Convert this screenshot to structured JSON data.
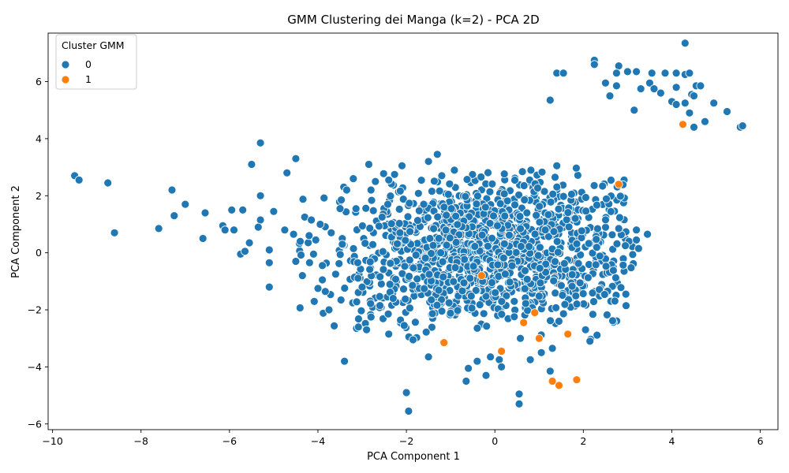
{
  "chart_data": {
    "type": "scatter",
    "title": "GMM Clustering dei Manga (k=2) - PCA 2D",
    "xlabel": "PCA Component 1",
    "ylabel": "PCA Component 2",
    "xlim": [
      -10.1,
      6.4
    ],
    "ylim": [
      -6.2,
      7.7
    ],
    "xticks": [
      "−10",
      "−8",
      "−6",
      "−4",
      "−2",
      "0",
      "2",
      "4",
      "6"
    ],
    "xtick_values": [
      -10,
      -8,
      -6,
      -4,
      -2,
      0,
      2,
      4,
      6
    ],
    "yticks": [
      "−6",
      "−4",
      "−2",
      "0",
      "2",
      "4",
      "6"
    ],
    "ytick_values": [
      -6,
      -4,
      -2,
      0,
      2,
      4,
      6
    ],
    "grid": false,
    "legend": {
      "title": "Cluster GMM",
      "placement": "top-left"
    },
    "series": [
      {
        "name": "0",
        "color": "#1f77b4",
        "points": [
          [
            -9.5,
            2.7
          ],
          [
            -9.4,
            2.55
          ],
          [
            -8.75,
            2.45
          ],
          [
            -8.6,
            0.7
          ],
          [
            -7.6,
            0.85
          ],
          [
            -7.3,
            2.2
          ],
          [
            -7.25,
            1.3
          ],
          [
            -7.0,
            1.7
          ],
          [
            -6.55,
            1.4
          ],
          [
            -6.6,
            0.5
          ],
          [
            -6.15,
            0.95
          ],
          [
            -6.1,
            0.8
          ],
          [
            -5.95,
            1.5
          ],
          [
            -5.9,
            0.8
          ],
          [
            -5.7,
            1.5
          ],
          [
            -5.75,
            -0.05
          ],
          [
            -5.65,
            0.05
          ],
          [
            -5.55,
            0.35
          ],
          [
            -5.5,
            3.1
          ],
          [
            -5.3,
            3.85
          ],
          [
            -5.3,
            2.0
          ],
          [
            -5.3,
            1.15
          ],
          [
            -5.35,
            0.9
          ],
          [
            -5.1,
            0.1
          ],
          [
            -5.1,
            -0.35
          ],
          [
            -5.1,
            -1.2
          ],
          [
            -5.0,
            1.45
          ],
          [
            -4.75,
            0.8
          ],
          [
            -4.7,
            2.8
          ],
          [
            -4.5,
            3.3
          ],
          [
            -4.55,
            0.65
          ],
          [
            -4.5,
            -0.3
          ],
          [
            -4.4,
            0.4
          ],
          [
            -4.35,
            -0.8
          ],
          [
            -4.3,
            1.25
          ],
          [
            -4.2,
            0.6
          ],
          [
            -4.15,
            1.15
          ],
          [
            -4.1,
            -0.05
          ],
          [
            -4.05,
            0.45
          ],
          [
            -4.0,
            -1.25
          ],
          [
            -3.95,
            1.0
          ],
          [
            -3.9,
            -0.45
          ],
          [
            -3.9,
            -0.95
          ],
          [
            -3.75,
            -2.0
          ],
          [
            -3.7,
            0.7
          ],
          [
            -3.6,
            -0.75
          ],
          [
            -3.5,
            1.55
          ],
          [
            -3.45,
            0.3
          ],
          [
            -3.4,
            -3.8
          ],
          [
            -3.35,
            2.2
          ],
          [
            -3.2,
            2.6
          ],
          [
            -3.1,
            -0.35
          ],
          [
            -3.0,
            -1.2
          ],
          [
            -2.9,
            -2.7
          ],
          [
            -2.85,
            3.1
          ],
          [
            -2.8,
            2.2
          ],
          [
            -2.8,
            -2.25
          ],
          [
            -2.7,
            2.5
          ],
          [
            -2.6,
            -1.85
          ],
          [
            -2.55,
            1.25
          ],
          [
            -2.4,
            2.55
          ],
          [
            -2.4,
            -2.85
          ],
          [
            -2.3,
            -1.6
          ],
          [
            -2.1,
            3.05
          ],
          [
            -2.05,
            -2.55
          ],
          [
            -2.0,
            -4.9
          ],
          [
            -1.95,
            -5.55
          ],
          [
            -1.85,
            -3.05
          ],
          [
            -1.5,
            3.2
          ],
          [
            -1.5,
            -3.65
          ],
          [
            -1.3,
            3.45
          ],
          [
            -1.2,
            2.7
          ],
          [
            -0.65,
            -4.5
          ],
          [
            -0.6,
            -4.05
          ],
          [
            -0.4,
            -3.8
          ],
          [
            -0.2,
            -4.3
          ],
          [
            -0.1,
            -3.65
          ],
          [
            0.1,
            -3.75
          ],
          [
            0.15,
            -4.0
          ],
          [
            0.55,
            -4.95
          ],
          [
            0.55,
            -5.3
          ],
          [
            0.8,
            -3.75
          ],
          [
            1.05,
            -3.5
          ],
          [
            1.3,
            -3.35
          ],
          [
            1.25,
            -4.15
          ],
          [
            1.4,
            3.05
          ],
          [
            1.4,
            6.3
          ],
          [
            1.55,
            6.3
          ],
          [
            1.25,
            5.35
          ],
          [
            2.05,
            -2.7
          ],
          [
            2.15,
            -3.1
          ],
          [
            2.25,
            6.75
          ],
          [
            2.25,
            6.6
          ],
          [
            2.5,
            5.95
          ],
          [
            2.6,
            5.5
          ],
          [
            2.8,
            6.55
          ],
          [
            2.75,
            5.85
          ],
          [
            2.75,
            6.3
          ],
          [
            3.0,
            6.35
          ],
          [
            3.2,
            6.35
          ],
          [
            3.15,
            5.0
          ],
          [
            3.3,
            5.75
          ],
          [
            3.5,
            5.95
          ],
          [
            3.55,
            6.3
          ],
          [
            3.6,
            5.75
          ],
          [
            3.75,
            5.6
          ],
          [
            3.85,
            6.3
          ],
          [
            4.0,
            5.3
          ],
          [
            4.1,
            6.3
          ],
          [
            4.1,
            5.8
          ],
          [
            4.1,
            5.2
          ],
          [
            4.3,
            7.35
          ],
          [
            4.3,
            6.25
          ],
          [
            4.3,
            5.25
          ],
          [
            4.4,
            6.3
          ],
          [
            4.4,
            4.9
          ],
          [
            4.45,
            5.55
          ],
          [
            4.5,
            5.5
          ],
          [
            4.55,
            5.85
          ],
          [
            4.5,
            4.4
          ],
          [
            4.65,
            5.85
          ],
          [
            4.75,
            4.6
          ],
          [
            4.95,
            5.25
          ],
          [
            5.25,
            4.95
          ],
          [
            5.55,
            4.4
          ],
          [
            5.6,
            4.45
          ],
          [
            3.2,
            0.8
          ],
          [
            3.25,
            0.15
          ],
          [
            3.2,
            0.45
          ],
          [
            3.45,
            0.65
          ],
          [
            2.95,
            0.25
          ],
          [
            2.8,
            0.85
          ]
        ]
      },
      {
        "name": "1",
        "color": "#ff7f0e",
        "points": [
          [
            -1.15,
            -3.15
          ],
          [
            0.15,
            -3.45
          ],
          [
            0.65,
            -2.45
          ],
          [
            1.0,
            -3.0
          ],
          [
            1.3,
            -4.5
          ],
          [
            1.45,
            -4.65
          ],
          [
            1.65,
            -2.85
          ],
          [
            1.85,
            -4.45
          ],
          [
            2.8,
            2.4
          ],
          [
            4.25,
            4.5
          ],
          [
            0.9,
            -2.1
          ],
          [
            -0.3,
            -0.8
          ]
        ]
      }
    ],
    "dense_cluster": {
      "note_series": "0",
      "center": [
        0.0,
        0.1
      ],
      "spread": [
        1.75,
        1.25
      ],
      "count": 1400
    }
  }
}
